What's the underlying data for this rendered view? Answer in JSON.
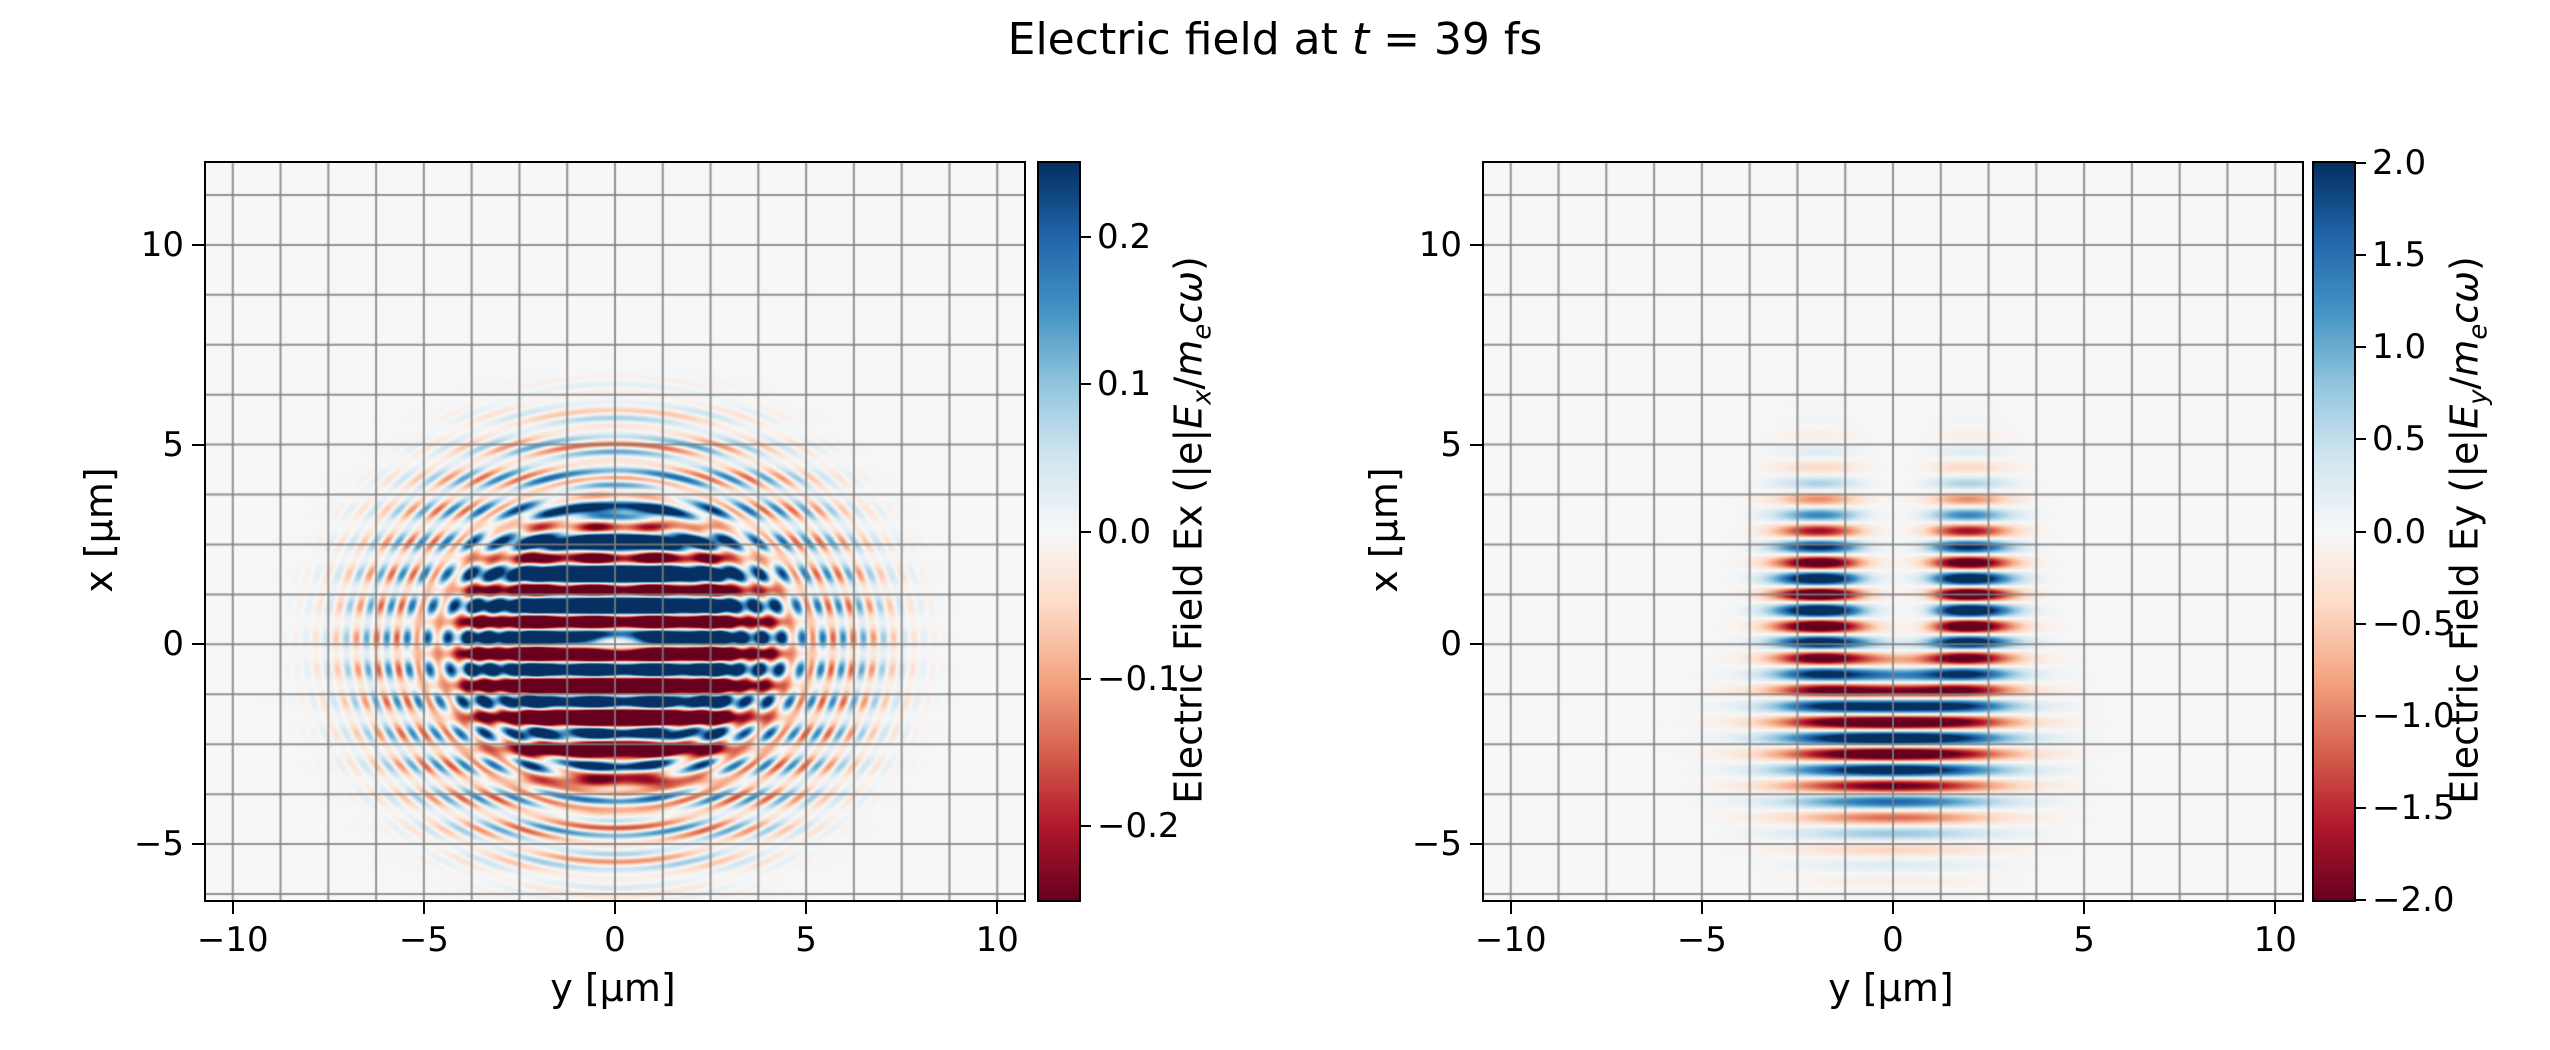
{
  "title": {
    "pre": "Electric field at ",
    "t": "t",
    "post": " = 39 fs"
  },
  "chart_data": {
    "type": "heatmap",
    "time_fs": 39,
    "colormap": {
      "name": "RdBu",
      "stops": [
        "#67001f",
        "#b2182b",
        "#d6604d",
        "#f4a582",
        "#fddbc7",
        "#f7f7f7",
        "#d1e5f0",
        "#92c5de",
        "#4393c3",
        "#2166ac",
        "#053061"
      ]
    },
    "grid": {
      "spacing_um": 1.25,
      "color": "#808080"
    },
    "panels": [
      {
        "field": "Ex",
        "xlabel": "y [μm]",
        "ylabel": "x [μm]",
        "xlim": [
          -10.7,
          10.7
        ],
        "ylim": [
          -6.4,
          12.05
        ],
        "xticks": {
          "values": [
            -10,
            -5,
            0,
            5,
            10
          ],
          "labels": [
            "−10",
            "−5",
            "0",
            "5",
            "10"
          ]
        },
        "yticks": {
          "values": [
            -5,
            0,
            5,
            10
          ],
          "labels": [
            "−5",
            "0",
            "5",
            "10"
          ]
        },
        "colorbar": {
          "vmin": -0.25,
          "vmax": 0.25,
          "ticks": {
            "values": [
              0.2,
              0.1,
              0.0,
              -0.1,
              -0.2
            ],
            "labels": [
              "0.2",
              "0.1",
              "0.0",
              "−0.1",
              "−0.2"
            ]
          },
          "label": {
            "pre": "Electric Field Ex (|e|",
            "sym": "E",
            "sub": "x",
            "mid": "/",
            "sym2": "m",
            "sub2": "e",
            "sym3": "c",
            "sym4": "ω",
            "post": ")"
          }
        },
        "synthesis": {
          "type": "ex",
          "lambda": 0.8,
          "phase": 0.3,
          "amp": 0.65,
          "ellipse": [
            0.95,
            1.18
          ],
          "core": [
            3.4,
            4
          ],
          "mod": [
            0.22,
            1.55,
            0.6
          ],
          "rings": [
            [
              0.16,
              0.45,
              4.9,
              1.4
            ],
            [
              0.09,
              0.45,
              3.1,
              1.0
            ]
          ],
          "bias": [
            [
              0.22,
              1.7,
              0,
              1.7,
              2.6
            ],
            [
              -0.18,
              -1.6,
              0,
              1.7,
              2.6
            ]
          ],
          "slit": [
            0.05,
            0.28,
            0,
            1.15
          ]
        }
      },
      {
        "field": "Ey",
        "xlabel": "y [μm]",
        "ylabel": "x [μm]",
        "xlim": [
          -10.7,
          10.7
        ],
        "ylim": [
          -6.4,
          12.05
        ],
        "xticks": {
          "values": [
            -10,
            -5,
            0,
            5,
            10
          ],
          "labels": [
            "−10",
            "−5",
            "0",
            "5",
            "10"
          ]
        },
        "yticks": {
          "values": [
            -5,
            0,
            5,
            10
          ],
          "labels": [
            "−5",
            "0",
            "5",
            "10"
          ]
        },
        "colorbar": {
          "vmin": -2.0,
          "vmax": 2.0,
          "ticks": {
            "values": [
              2.0,
              1.5,
              1.0,
              0.5,
              0.0,
              -0.5,
              -1.0,
              -1.5,
              -2.0
            ],
            "labels": [
              "2.0",
              "1.5",
              "1.0",
              "0.5",
              "0.0",
              "−0.5",
              "−1.0",
              "−1.5",
              "−2.0"
            ]
          },
          "label": {
            "pre": "Electric Field Ey (|e|",
            "sym": "E",
            "sub": "y",
            "mid": "/",
            "sym2": "m",
            "sub2": "e",
            "sym3": "c",
            "sym4": "ω",
            "post": ")"
          }
        },
        "synthesis": {
          "type": "ey",
          "lambda": 0.8,
          "phase": 1.2,
          "amp": 2.9,
          "upper": [
            1.95,
            1.1,
            1.2,
            2.3
          ],
          "lower": [
            2.6,
            -2.4,
            2.0
          ],
          "hole": [
            0.7,
            1.05,
            0.35,
            0.8,
            0.92
          ],
          "wedge": [
            1.2,
            0.5,
            0.15,
            0.75,
            0.7
          ]
        }
      }
    ]
  }
}
